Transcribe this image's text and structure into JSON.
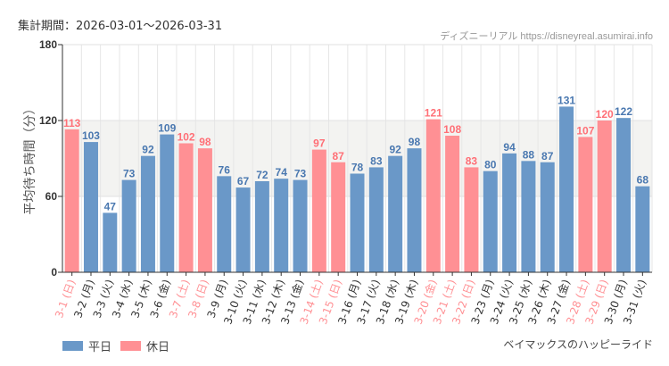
{
  "header": {
    "period": "集計期間：2026-03-01～2026-03-31",
    "credit": "ディズニーリアル https://disneyreal.asumirai.info"
  },
  "footer": {
    "attraction": "ベイマックスのハッピーライド"
  },
  "legend": [
    {
      "label": "平日",
      "color": "#6a98c8"
    },
    {
      "label": "休日",
      "color": "#ff9094"
    }
  ],
  "chart_data": {
    "type": "bar",
    "ylabel": "平均待ち時間（分）",
    "ylim": [
      0,
      180
    ],
    "yticks": [
      0,
      60,
      120,
      180
    ],
    "shaded_band": [
      60,
      120
    ],
    "grid": true,
    "legend_position": "bottom-left",
    "categories": [
      "3-1 (日)",
      "3-2 (月)",
      "3-3 (火)",
      "3-4 (水)",
      "3-5 (木)",
      "3-6 (金)",
      "3-7 (土)",
      "3-8 (日)",
      "3-9 (月)",
      "3-10 (火)",
      "3-11 (水)",
      "3-12 (木)",
      "3-13 (金)",
      "3-14 (土)",
      "3-15 (日)",
      "3-16 (月)",
      "3-17 (火)",
      "3-18 (水)",
      "3-19 (木)",
      "3-20 (金)",
      "3-21 (土)",
      "3-22 (日)",
      "3-23 (月)",
      "3-24 (火)",
      "3-25 (水)",
      "3-26 (木)",
      "3-27 (金)",
      "3-28 (土)",
      "3-29 (日)",
      "3-30 (月)",
      "3-31 (火)"
    ],
    "values": [
      113,
      103,
      47,
      73,
      92,
      109,
      102,
      98,
      76,
      67,
      72,
      74,
      73,
      97,
      87,
      78,
      83,
      92,
      98,
      121,
      108,
      83,
      80,
      94,
      88,
      87,
      131,
      107,
      120,
      122,
      68
    ],
    "holiday": [
      true,
      false,
      false,
      false,
      false,
      false,
      true,
      true,
      false,
      false,
      false,
      false,
      false,
      true,
      true,
      false,
      false,
      false,
      false,
      true,
      true,
      true,
      false,
      false,
      false,
      false,
      false,
      true,
      true,
      false,
      false
    ],
    "colors": {
      "weekday": "#6a98c8",
      "holiday": "#ff9094",
      "weekday_label": "#4a78b0",
      "holiday_label": "#ff6f76"
    }
  }
}
